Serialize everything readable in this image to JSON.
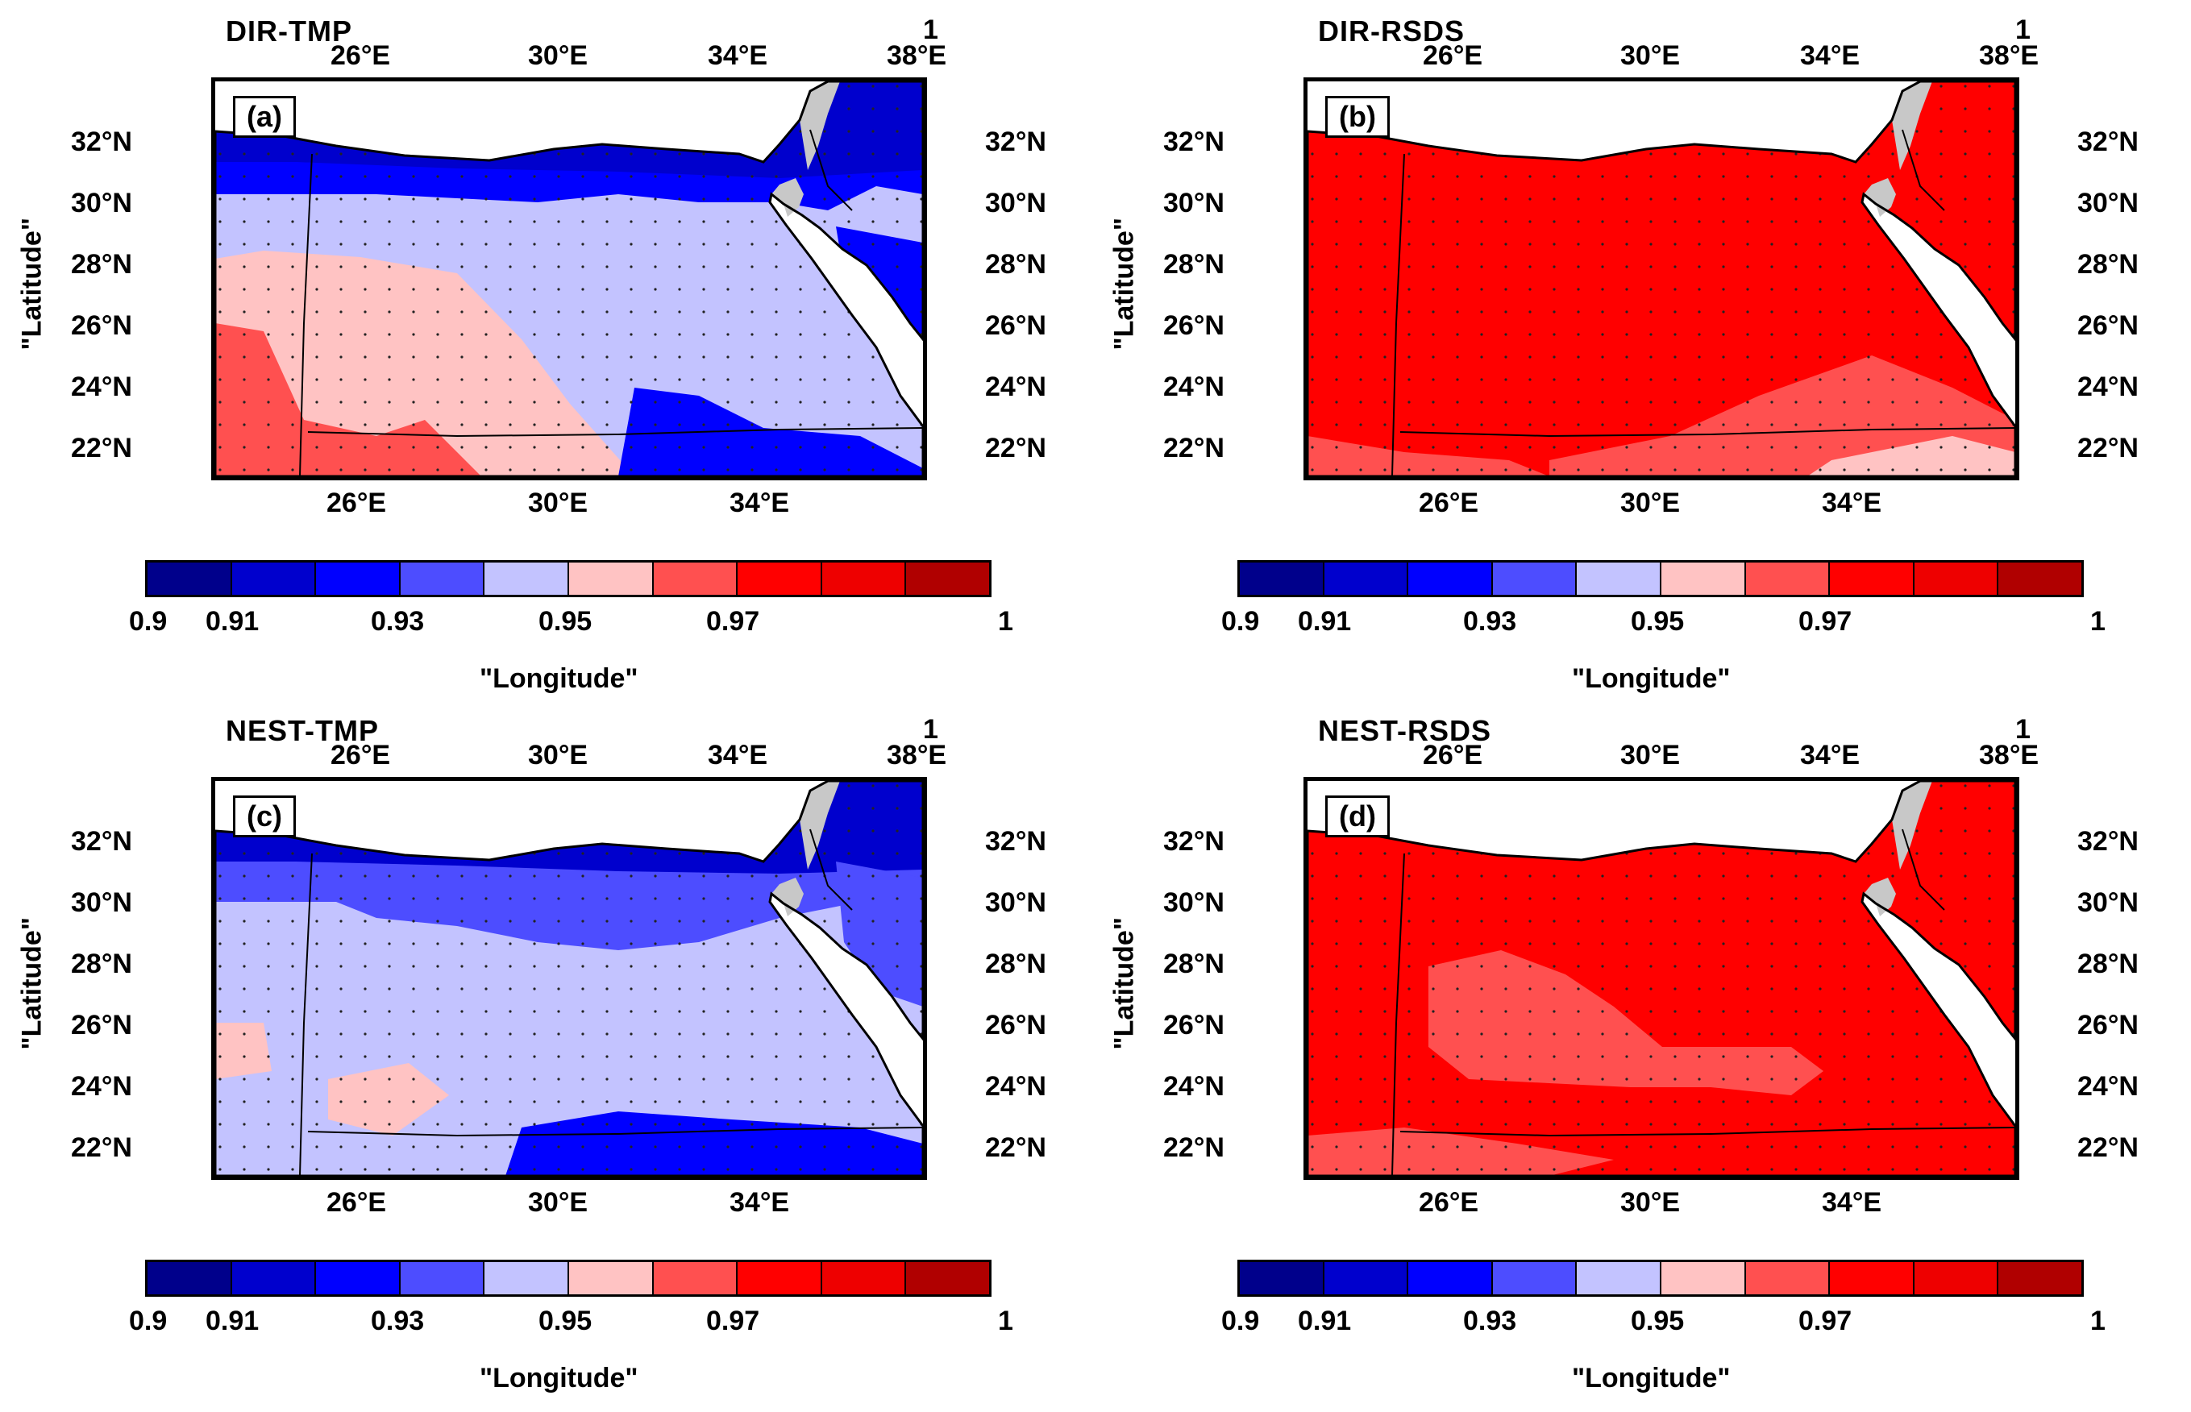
{
  "colorbar": {
    "colors": [
      "#00008b",
      "#0000cd",
      "#0000ff",
      "#4d4dff",
      "#c3c3ff",
      "#ffc3c3",
      "#ff5050",
      "#ff0000",
      "#ee0000",
      "#b00000"
    ],
    "labels": [
      "0.9",
      "0.91",
      "0.93",
      "0.95",
      "0.97",
      "1"
    ]
  },
  "longitude_ticks": [
    "26°E",
    "30°E",
    "34°E",
    "38°E"
  ],
  "latitude_ticks": [
    "32°N",
    "30°N",
    "28°N",
    "26°N",
    "24°N",
    "22°N"
  ],
  "top_right_marker": "1",
  "x_label": "\"Longitude\"",
  "y_label": "\"Latitude\"",
  "panels": [
    {
      "title": "DIR-TMP",
      "label": "(a)",
      "variant": "tmp_dir"
    },
    {
      "title": "DIR-RSDS",
      "label": "(b)",
      "variant": "rsds_dir"
    },
    {
      "title": "NEST-TMP",
      "label": "(c)",
      "variant": "tmp_nest"
    },
    {
      "title": "NEST-RSDS",
      "label": "(d)",
      "variant": "rsds_nest"
    }
  ],
  "colors": {
    "sea": "#ffffff",
    "land_masked": "#c8c8c8",
    "border": "#000000"
  }
}
